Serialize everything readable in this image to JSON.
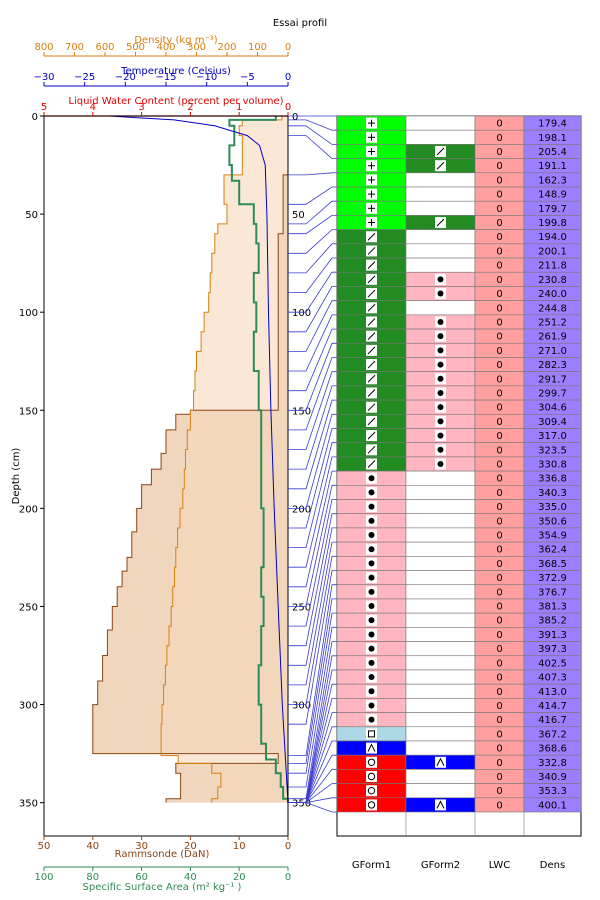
{
  "chart_data": {
    "type": "profile",
    "title": "Essai profil",
    "ylabel": "Depth (cm)",
    "ylim": [
      0,
      367
    ],
    "yticks": [
      0,
      50,
      100,
      150,
      200,
      250,
      300,
      350
    ],
    "top_axes": [
      {
        "label": "Density (kg m⁻³)",
        "color": "#d87f10",
        "range": [
          800,
          0
        ],
        "ticks": [
          800,
          700,
          600,
          500,
          400,
          300,
          200,
          100,
          0
        ]
      },
      {
        "label": "Temperature (Celsius)",
        "color": "#0000c0",
        "range": [
          -30,
          0
        ],
        "ticks": [
          -30,
          -25,
          -20,
          -15,
          -10,
          -5,
          0
        ]
      },
      {
        "label": "Liquid Water Content (percent per volume)",
        "color": "#e00000",
        "range": [
          5,
          0
        ],
        "ticks": [
          5,
          4,
          3,
          2,
          1,
          0
        ]
      }
    ],
    "bottom_axes": [
      {
        "label": "Rammsonde (DaN)",
        "color": "#8b4513",
        "range": [
          50,
          0
        ],
        "ticks": [
          50,
          40,
          30,
          20,
          10,
          0
        ]
      },
      {
        "label": "Specific Surface Area (m²  kg⁻¹ )",
        "color": "#2e8b57",
        "range": [
          100,
          0
        ],
        "ticks": [
          100,
          80,
          60,
          40,
          20,
          0
        ]
      }
    ],
    "temperature": {
      "depth": [
        0,
        2,
        5,
        10,
        15,
        25,
        50,
        100,
        150,
        200,
        250,
        300,
        350
      ],
      "celsius": [
        -22,
        -14,
        -9,
        -5,
        -3.5,
        -2.8,
        -2.6,
        -2.4,
        -2.1,
        -1.7,
        -1.2,
        -0.7,
        0
      ]
    },
    "density_steps": [
      {
        "top": 0,
        "bottom": 2,
        "value": 20
      },
      {
        "top": 2,
        "bottom": 5,
        "value": 150
      },
      {
        "top": 5,
        "bottom": 10,
        "value": 160
      },
      {
        "top": 10,
        "bottom": 30,
        "value": 150
      },
      {
        "top": 30,
        "bottom": 45,
        "value": 210
      },
      {
        "top": 45,
        "bottom": 55,
        "value": 200
      },
      {
        "top": 55,
        "bottom": 60,
        "value": 230
      },
      {
        "top": 60,
        "bottom": 70,
        "value": 240
      },
      {
        "top": 70,
        "bottom": 80,
        "value": 250
      },
      {
        "top": 80,
        "bottom": 90,
        "value": 255
      },
      {
        "top": 90,
        "bottom": 100,
        "value": 260
      },
      {
        "top": 100,
        "bottom": 110,
        "value": 275
      },
      {
        "top": 110,
        "bottom": 120,
        "value": 285
      },
      {
        "top": 120,
        "bottom": 130,
        "value": 300
      },
      {
        "top": 130,
        "bottom": 140,
        "value": 305
      },
      {
        "top": 140,
        "bottom": 150,
        "value": 310
      },
      {
        "top": 150,
        "bottom": 160,
        "value": 320
      },
      {
        "top": 160,
        "bottom": 170,
        "value": 330
      },
      {
        "top": 170,
        "bottom": 180,
        "value": 336
      },
      {
        "top": 180,
        "bottom": 190,
        "value": 340
      },
      {
        "top": 190,
        "bottom": 200,
        "value": 345
      },
      {
        "top": 200,
        "bottom": 210,
        "value": 354
      },
      {
        "top": 210,
        "bottom": 220,
        "value": 362
      },
      {
        "top": 220,
        "bottom": 230,
        "value": 368
      },
      {
        "top": 230,
        "bottom": 240,
        "value": 372
      },
      {
        "top": 240,
        "bottom": 250,
        "value": 378
      },
      {
        "top": 250,
        "bottom": 260,
        "value": 383
      },
      {
        "top": 260,
        "bottom": 270,
        "value": 390
      },
      {
        "top": 270,
        "bottom": 280,
        "value": 397
      },
      {
        "top": 280,
        "bottom": 290,
        "value": 402
      },
      {
        "top": 290,
        "bottom": 300,
        "value": 408
      },
      {
        "top": 300,
        "bottom": 310,
        "value": 413
      },
      {
        "top": 310,
        "bottom": 326,
        "value": 416
      },
      {
        "top": 326,
        "bottom": 330,
        "value": 360
      },
      {
        "top": 330,
        "bottom": 335,
        "value": 250
      },
      {
        "top": 335,
        "bottom": 342,
        "value": 220
      },
      {
        "top": 342,
        "bottom": 348,
        "value": 230
      },
      {
        "top": 348,
        "bottom": 350,
        "value": 250
      }
    ],
    "rammsonde_steps": [
      {
        "top": 0,
        "bottom": 30,
        "value": 0
      },
      {
        "top": 30,
        "bottom": 60,
        "value": 1
      },
      {
        "top": 60,
        "bottom": 100,
        "value": 2
      },
      {
        "top": 100,
        "bottom": 150,
        "value": 2
      },
      {
        "top": 150,
        "bottom": 152,
        "value": 20
      },
      {
        "top": 152,
        "bottom": 160,
        "value": 23
      },
      {
        "top": 160,
        "bottom": 172,
        "value": 25
      },
      {
        "top": 172,
        "bottom": 180,
        "value": 26
      },
      {
        "top": 180,
        "bottom": 188,
        "value": 28
      },
      {
        "top": 188,
        "bottom": 200,
        "value": 30
      },
      {
        "top": 200,
        "bottom": 212,
        "value": 31
      },
      {
        "top": 212,
        "bottom": 225,
        "value": 32
      },
      {
        "top": 225,
        "bottom": 232,
        "value": 33
      },
      {
        "top": 232,
        "bottom": 240,
        "value": 34
      },
      {
        "top": 240,
        "bottom": 250,
        "value": 35
      },
      {
        "top": 250,
        "bottom": 262,
        "value": 36
      },
      {
        "top": 262,
        "bottom": 275,
        "value": 37
      },
      {
        "top": 275,
        "bottom": 288,
        "value": 38
      },
      {
        "top": 288,
        "bottom": 300,
        "value": 39
      },
      {
        "top": 300,
        "bottom": 325,
        "value": 40
      },
      {
        "top": 325,
        "bottom": 330,
        "value": 2
      },
      {
        "top": 330,
        "bottom": 335,
        "value": 23
      },
      {
        "top": 335,
        "bottom": 348,
        "value": 22
      },
      {
        "top": 348,
        "bottom": 350,
        "value": 25
      }
    ],
    "ssa_steps": [
      {
        "top": 0,
        "bottom": 2,
        "value": 5
      },
      {
        "top": 2,
        "bottom": 5,
        "value": 24
      },
      {
        "top": 5,
        "bottom": 15,
        "value": 22
      },
      {
        "top": 15,
        "bottom": 25,
        "value": 24
      },
      {
        "top": 25,
        "bottom": 33,
        "value": 23
      },
      {
        "top": 33,
        "bottom": 45,
        "value": 20
      },
      {
        "top": 45,
        "bottom": 55,
        "value": 14
      },
      {
        "top": 55,
        "bottom": 65,
        "value": 13
      },
      {
        "top": 65,
        "bottom": 80,
        "value": 12
      },
      {
        "top": 80,
        "bottom": 95,
        "value": 14
      },
      {
        "top": 95,
        "bottom": 110,
        "value": 13
      },
      {
        "top": 110,
        "bottom": 130,
        "value": 14
      },
      {
        "top": 130,
        "bottom": 150,
        "value": 12
      },
      {
        "top": 150,
        "bottom": 175,
        "value": 11
      },
      {
        "top": 175,
        "bottom": 200,
        "value": 11
      },
      {
        "top": 200,
        "bottom": 230,
        "value": 10
      },
      {
        "top": 230,
        "bottom": 245,
        "value": 11
      },
      {
        "top": 245,
        "bottom": 260,
        "value": 10
      },
      {
        "top": 260,
        "bottom": 280,
        "value": 11
      },
      {
        "top": 280,
        "bottom": 300,
        "value": 12
      },
      {
        "top": 300,
        "bottom": 320,
        "value": 11
      },
      {
        "top": 320,
        "bottom": 328,
        "value": 9
      },
      {
        "top": 328,
        "bottom": 335,
        "value": 5
      },
      {
        "top": 335,
        "bottom": 342,
        "value": 3
      },
      {
        "top": 342,
        "bottom": 348,
        "value": 2
      },
      {
        "top": 348,
        "bottom": 350,
        "value": 0
      }
    ],
    "layers_table": {
      "headers": [
        "GForm1",
        "GForm2",
        "LWC",
        "Dens"
      ],
      "colors": {
        "+": "#00ff00",
        "/": "#228b22",
        "dot": "#ffb6c1",
        "sq": "#add8e6",
        "^": "#0000ff",
        "o": "#ff0000",
        "none": "#ffffff"
      },
      "rows": [
        {
          "g1": "+",
          "g2": "",
          "lwc": "0",
          "dens": "179.4"
        },
        {
          "g1": "+",
          "g2": "",
          "lwc": "0",
          "dens": "198.1"
        },
        {
          "g1": "+",
          "g2": "/",
          "lwc": "0",
          "dens": "205.4"
        },
        {
          "g1": "+",
          "g2": "/",
          "lwc": "0",
          "dens": "191.1"
        },
        {
          "g1": "+",
          "g2": "",
          "lwc": "0",
          "dens": "162.3"
        },
        {
          "g1": "+",
          "g2": "",
          "lwc": "0",
          "dens": "148.9"
        },
        {
          "g1": "+",
          "g2": "",
          "lwc": "0",
          "dens": "179.7"
        },
        {
          "g1": "+",
          "g2": "/",
          "lwc": "0",
          "dens": "199.8"
        },
        {
          "g1": "/",
          "g2": "",
          "lwc": "0",
          "dens": "194.0"
        },
        {
          "g1": "/",
          "g2": "",
          "lwc": "0",
          "dens": "200.1"
        },
        {
          "g1": "/",
          "g2": "",
          "lwc": "0",
          "dens": "211.8"
        },
        {
          "g1": "/",
          "g2": "dot",
          "lwc": "0",
          "dens": "230.8"
        },
        {
          "g1": "/",
          "g2": "dot",
          "lwc": "0",
          "dens": "240.0"
        },
        {
          "g1": "/",
          "g2": "",
          "lwc": "0",
          "dens": "244.8"
        },
        {
          "g1": "/",
          "g2": "dot",
          "lwc": "0",
          "dens": "251.2"
        },
        {
          "g1": "/",
          "g2": "dot",
          "lwc": "0",
          "dens": "261.9"
        },
        {
          "g1": "/",
          "g2": "dot",
          "lwc": "0",
          "dens": "271.0"
        },
        {
          "g1": "/",
          "g2": "dot",
          "lwc": "0",
          "dens": "282.3"
        },
        {
          "g1": "/",
          "g2": "dot",
          "lwc": "0",
          "dens": "291.7"
        },
        {
          "g1": "/",
          "g2": "dot",
          "lwc": "0",
          "dens": "299.7"
        },
        {
          "g1": "/",
          "g2": "dot",
          "lwc": "0",
          "dens": "304.6"
        },
        {
          "g1": "/",
          "g2": "dot",
          "lwc": "0",
          "dens": "309.4"
        },
        {
          "g1": "/",
          "g2": "dot",
          "lwc": "0",
          "dens": "317.0"
        },
        {
          "g1": "/",
          "g2": "dot",
          "lwc": "0",
          "dens": "323.5"
        },
        {
          "g1": "/",
          "g2": "dot",
          "lwc": "0",
          "dens": "330.8"
        },
        {
          "g1": "dot",
          "g2": "",
          "lwc": "0",
          "dens": "336.8"
        },
        {
          "g1": "dot",
          "g2": "",
          "lwc": "0",
          "dens": "340.3"
        },
        {
          "g1": "dot",
          "g2": "",
          "lwc": "0",
          "dens": "335.0"
        },
        {
          "g1": "dot",
          "g2": "",
          "lwc": "0",
          "dens": "350.6"
        },
        {
          "g1": "dot",
          "g2": "",
          "lwc": "0",
          "dens": "354.9"
        },
        {
          "g1": "dot",
          "g2": "",
          "lwc": "0",
          "dens": "362.4"
        },
        {
          "g1": "dot",
          "g2": "",
          "lwc": "0",
          "dens": "368.5"
        },
        {
          "g1": "dot",
          "g2": "",
          "lwc": "0",
          "dens": "372.9"
        },
        {
          "g1": "dot",
          "g2": "",
          "lwc": "0",
          "dens": "376.7"
        },
        {
          "g1": "dot",
          "g2": "",
          "lwc": "0",
          "dens": "381.3"
        },
        {
          "g1": "dot",
          "g2": "",
          "lwc": "0",
          "dens": "385.2"
        },
        {
          "g1": "dot",
          "g2": "",
          "lwc": "0",
          "dens": "391.3"
        },
        {
          "g1": "dot",
          "g2": "",
          "lwc": "0",
          "dens": "397.3"
        },
        {
          "g1": "dot",
          "g2": "",
          "lwc": "0",
          "dens": "402.5"
        },
        {
          "g1": "dot",
          "g2": "",
          "lwc": "0",
          "dens": "407.3"
        },
        {
          "g1": "dot",
          "g2": "",
          "lwc": "0",
          "dens": "413.0"
        },
        {
          "g1": "dot",
          "g2": "",
          "lwc": "0",
          "dens": "414.7"
        },
        {
          "g1": "dot",
          "g2": "",
          "lwc": "0",
          "dens": "416.7"
        },
        {
          "g1": "sq",
          "g2": "",
          "lwc": "0",
          "dens": "367.2"
        },
        {
          "g1": "^",
          "g2": "",
          "lwc": "0",
          "dens": "368.6"
        },
        {
          "g1": "o",
          "g2": "^",
          "lwc": "0",
          "dens": "332.8"
        },
        {
          "g1": "o",
          "g2": "",
          "lwc": "0",
          "dens": "340.9"
        },
        {
          "g1": "o",
          "g2": "",
          "lwc": "0",
          "dens": "353.3"
        },
        {
          "g1": "o",
          "g2": "^",
          "lwc": "0",
          "dens": "400.1"
        }
      ]
    }
  }
}
